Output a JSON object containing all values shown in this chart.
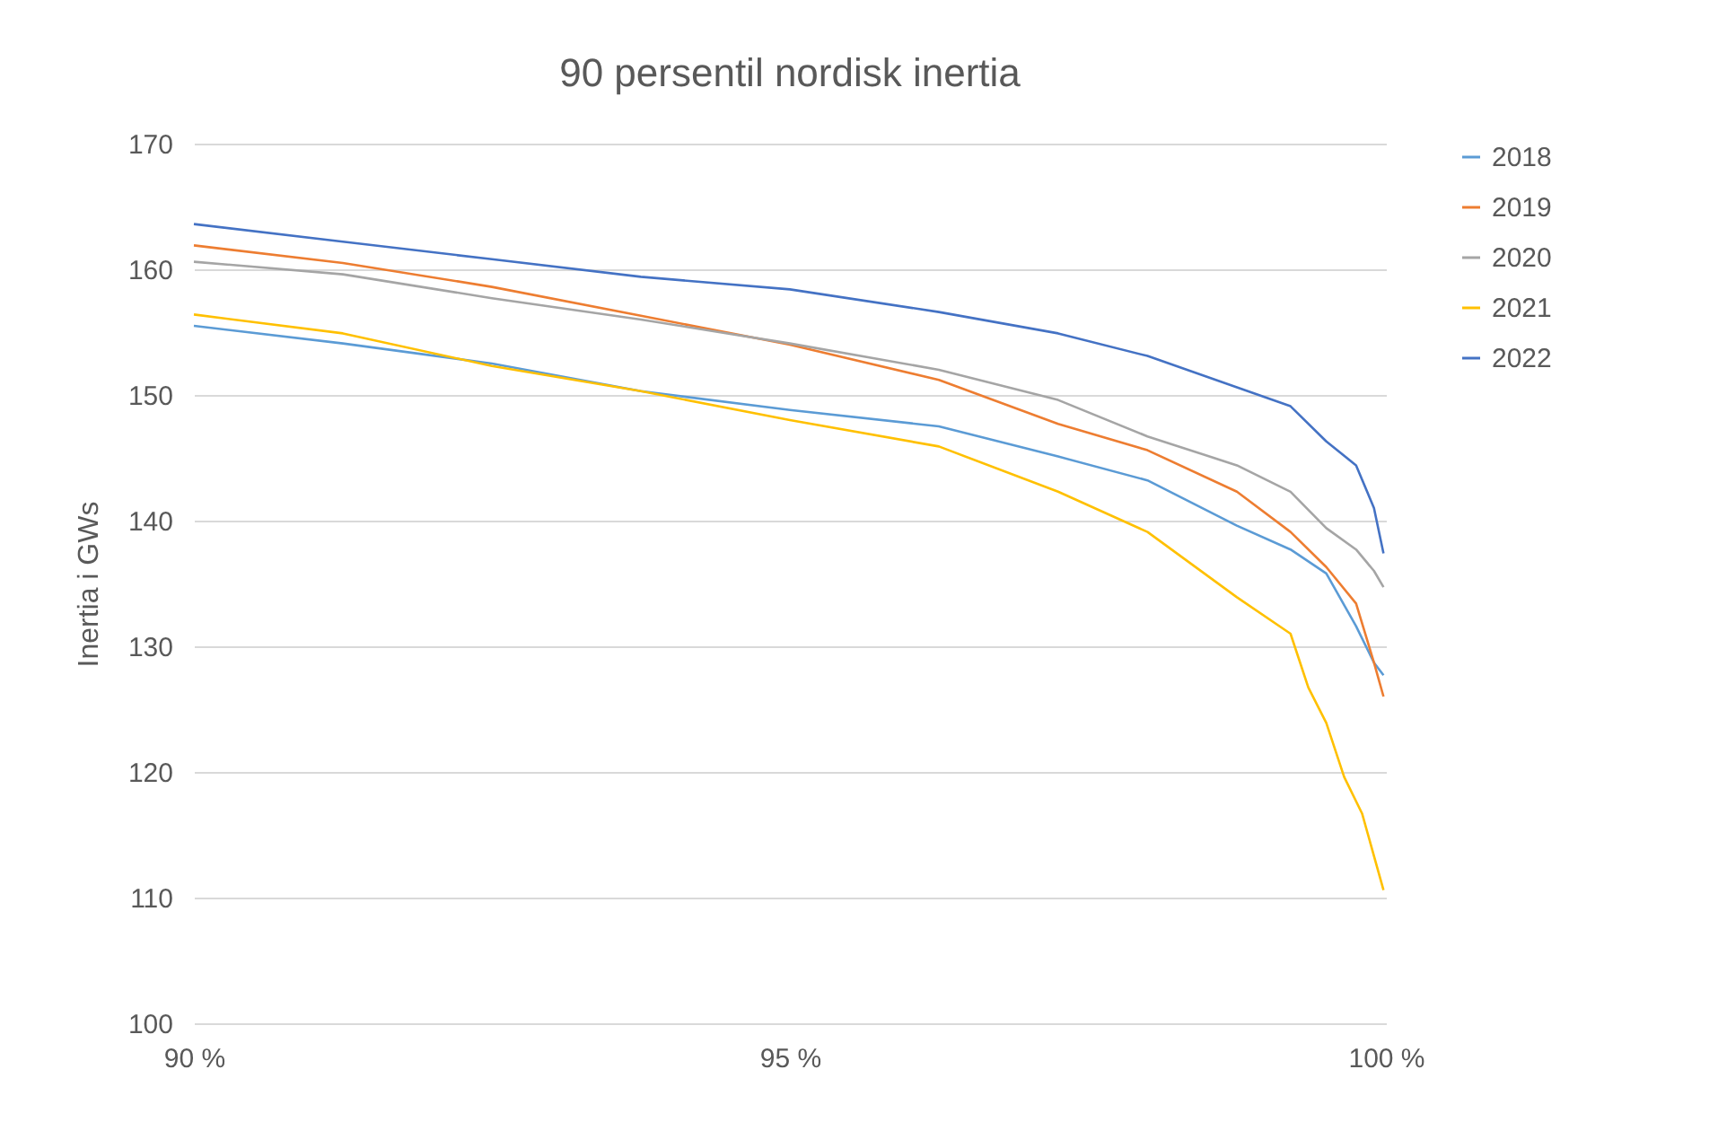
{
  "chart_data": {
    "type": "line",
    "title": "90 persentil nordisk inertia",
    "ylabel": "Inertia i GWs",
    "xlim": [
      90,
      100
    ],
    "xticks": [
      {
        "value": 90,
        "label": "90 %"
      },
      {
        "value": 95,
        "label": "95 %"
      },
      {
        "value": 100,
        "label": "100 %"
      }
    ],
    "ylim": [
      100,
      170
    ],
    "yticks": [
      100,
      110,
      120,
      130,
      140,
      150,
      160,
      170
    ],
    "grid": "y",
    "legend": "right",
    "line_style": "solid",
    "marker": "none",
    "series": [
      {
        "name": "2018",
        "color": "#5b9bd5",
        "x": [
          90,
          91.25,
          92.5,
          93.75,
          95,
          96.25,
          97.25,
          98,
          98.75,
          99.2,
          99.5,
          99.75,
          99.9,
          99.98
        ],
        "values": [
          155.5,
          154.1,
          152.5,
          150.3,
          148.8,
          147.5,
          145.1,
          143.2,
          139.6,
          137.7,
          135.8,
          131.6,
          128.7,
          127.7
        ]
      },
      {
        "name": "2019",
        "color": "#ed7d31",
        "x": [
          90,
          91.25,
          92.5,
          93.75,
          95,
          96.25,
          97.25,
          98,
          98.75,
          99.2,
          99.5,
          99.75,
          99.9,
          99.98
        ],
        "values": [
          161.9,
          160.5,
          158.6,
          156.3,
          154.0,
          151.2,
          147.7,
          145.6,
          142.3,
          139.1,
          136.3,
          133.4,
          128.7,
          126
        ]
      },
      {
        "name": "2020",
        "color": "#a5a5a5",
        "x": [
          90,
          91.25,
          92.5,
          93.75,
          95,
          96.25,
          97.25,
          98,
          98.75,
          99.2,
          99.5,
          99.75,
          99.9,
          99.98
        ],
        "values": [
          160.6,
          159.6,
          157.7,
          156,
          154.1,
          152,
          149.6,
          146.7,
          144.4,
          142.3,
          139.4,
          137.7,
          136,
          134.7
        ]
      },
      {
        "name": "2021",
        "color": "#ffc000",
        "x": [
          90,
          91.25,
          92.5,
          93.75,
          95,
          96.25,
          97.25,
          98,
          98.75,
          99.2,
          99.35,
          99.5,
          99.65,
          99.8,
          99.98
        ],
        "values": [
          156.4,
          154.9,
          152.3,
          150.3,
          148,
          145.9,
          142.3,
          139.1,
          133.9,
          131,
          126.7,
          123.9,
          119.6,
          116.7,
          110.6
        ]
      },
      {
        "name": "2022",
        "color": "#4472c4",
        "x": [
          90,
          91.25,
          92.5,
          93.75,
          95,
          96.25,
          97.25,
          98,
          98.75,
          99.2,
          99.5,
          99.75,
          99.9,
          99.98
        ],
        "values": [
          163.6,
          162.2,
          160.8,
          159.4,
          158.4,
          156.6,
          154.9,
          153.1,
          150.6,
          149.1,
          146.3,
          144.4,
          141,
          137.4
        ]
      }
    ]
  }
}
